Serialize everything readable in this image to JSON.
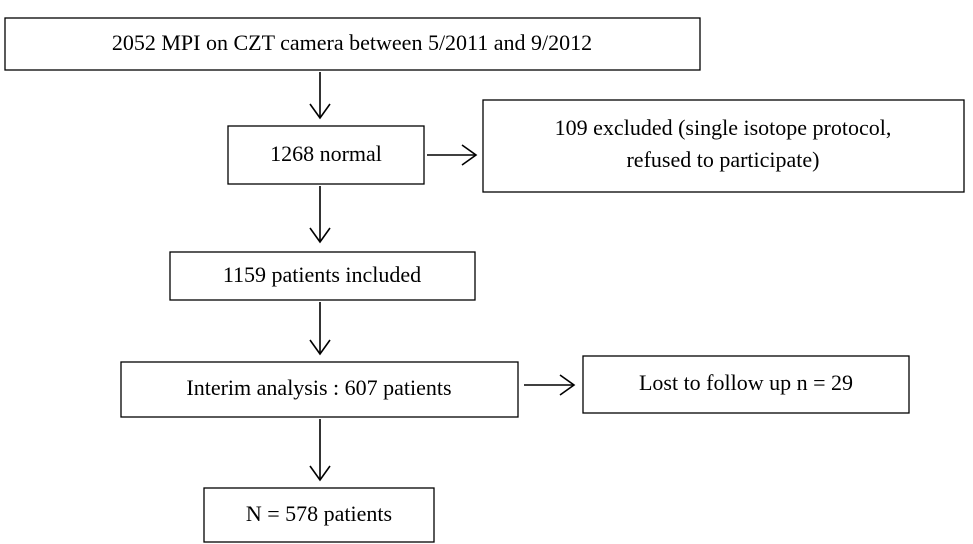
{
  "nodes": [
    {
      "label": "2052 MPI on CZT camera between 5/2011 and 9/2012"
    },
    {
      "label": "1268 normal"
    },
    {
      "label": [
        "109 excluded (single isotope protocol,",
        "refused to participate)"
      ]
    },
    {
      "label": "1159 patients included"
    },
    {
      "label": "Interim analysis : 607 patients"
    },
    {
      "label": "Lost to follow up n = 29"
    },
    {
      "label": "N = 578 patients"
    }
  ]
}
